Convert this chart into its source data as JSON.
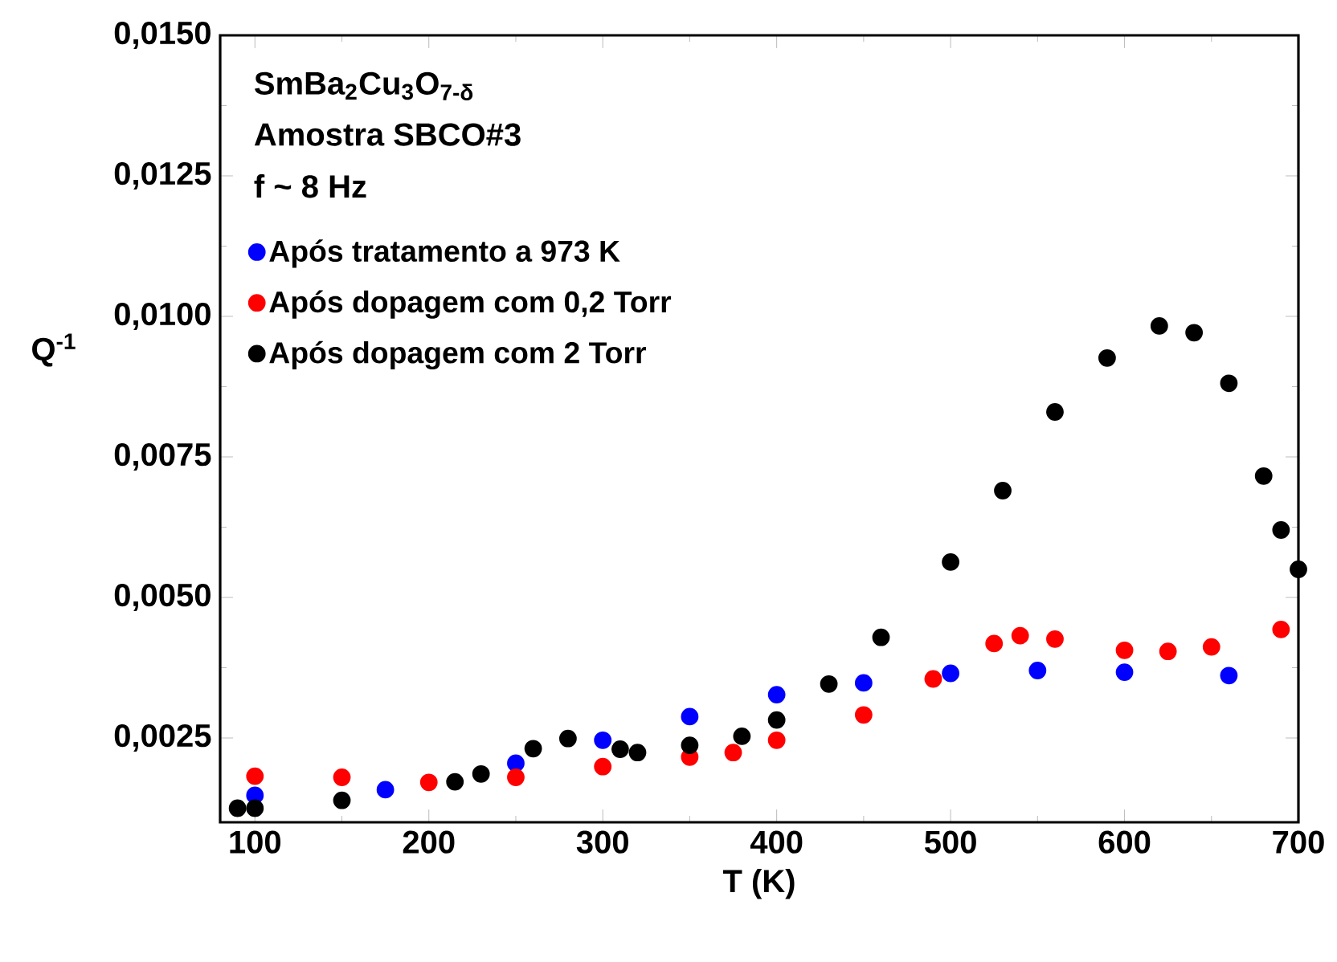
{
  "chart_data": {
    "type": "scatter",
    "xlabel": "T (K)",
    "ylabel": "Q$^{-1}$",
    "annotations": [
      "SmBa$_{2}$Cu$_{3}$O$_{7-δ}$",
      "Amostra SBCO#3",
      "f ~ 8 Hz"
    ],
    "xlim": [
      80,
      700
    ],
    "ylim": [
      0.001,
      0.015
    ],
    "xticks": [
      100,
      200,
      300,
      400,
      500,
      600,
      700
    ],
    "yticks": [
      {
        "value": 0.0025,
        "label": "0,0025"
      },
      {
        "value": 0.005,
        "label": "0,0050"
      },
      {
        "value": 0.0075,
        "label": "0,0075"
      },
      {
        "value": 0.01,
        "label": "0,0100"
      },
      {
        "value": 0.0125,
        "label": "0,0125"
      },
      {
        "value": 0.015,
        "label": "0,0150"
      }
    ],
    "marker": "circle",
    "legend": "left",
    "grid": false,
    "series": [
      {
        "name": "Após tratamento a 973 K",
        "color": "#0000ff",
        "x": [
          100,
          175,
          250,
          300,
          350,
          400,
          450,
          500,
          550,
          600,
          660
        ],
        "values": [
          0.00148,
          0.00158,
          0.00205,
          0.00246,
          0.00288,
          0.00327,
          0.00348,
          0.00365,
          0.0037,
          0.00367,
          0.00361
        ]
      },
      {
        "name": "Após dopagem com 0,2 Torr",
        "color": "#ff0000",
        "x": [
          100,
          150,
          200,
          250,
          300,
          350,
          375,
          400,
          450,
          490,
          525,
          540,
          560,
          600,
          625,
          650,
          690
        ],
        "values": [
          0.00182,
          0.0018,
          0.00171,
          0.0018,
          0.00199,
          0.00216,
          0.00224,
          0.00246,
          0.00291,
          0.00355,
          0.00418,
          0.00432,
          0.00426,
          0.00406,
          0.00404,
          0.00412,
          0.00443
        ]
      },
      {
        "name": "Após dopagem com 2 Torr",
        "color": "#000000",
        "x": [
          90,
          100,
          150,
          215,
          230,
          260,
          280,
          310,
          320,
          350,
          380,
          400,
          430,
          460,
          500,
          530,
          560,
          590,
          620,
          640,
          660,
          680,
          690,
          700
        ],
        "values": [
          0.00125,
          0.00125,
          0.00139,
          0.00172,
          0.00186,
          0.00231,
          0.00249,
          0.0023,
          0.00224,
          0.00237,
          0.00253,
          0.00282,
          0.00346,
          0.00429,
          0.00563,
          0.0069,
          0.0083,
          0.00926,
          0.00983,
          0.00971,
          0.00881,
          0.00716,
          0.0062,
          0.0055
        ]
      }
    ]
  }
}
